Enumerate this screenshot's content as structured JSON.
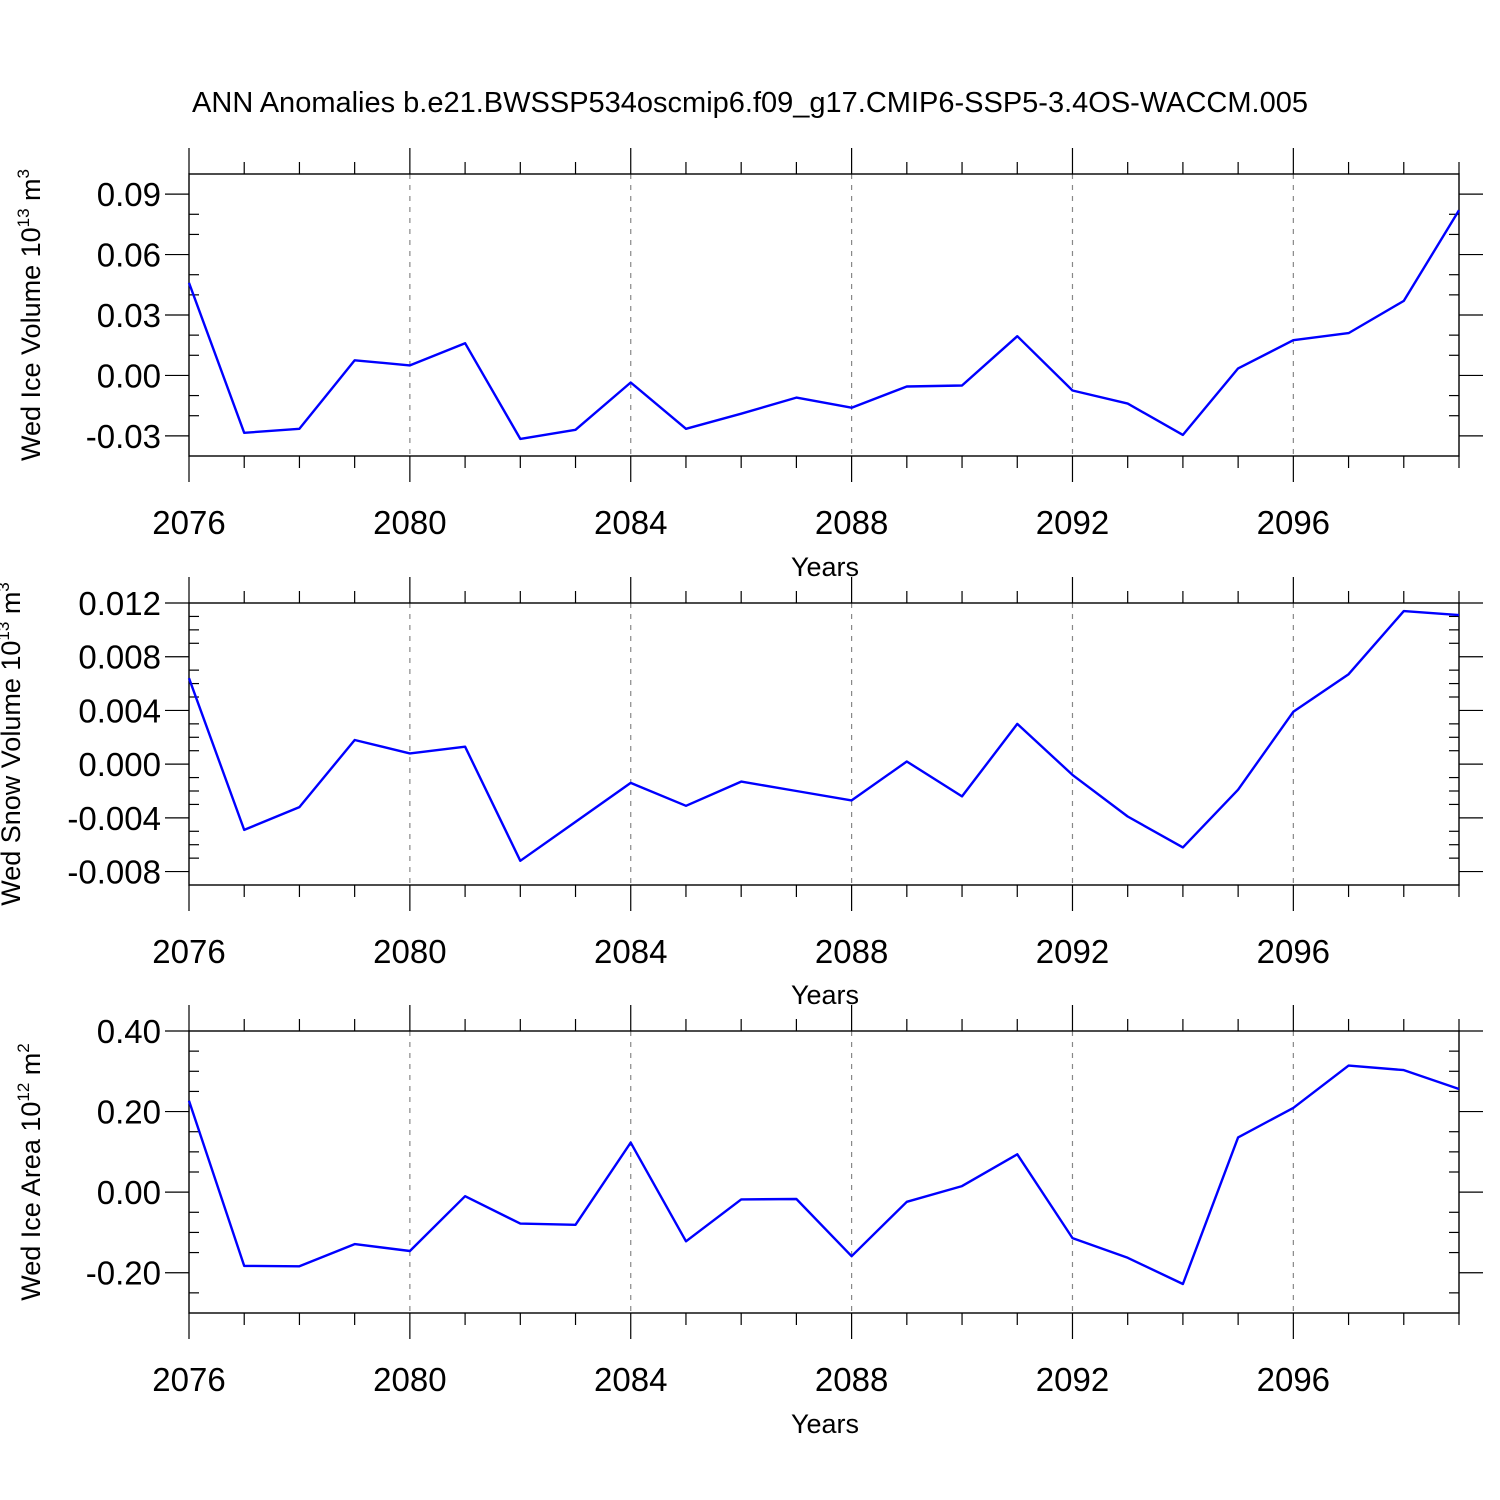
{
  "title": "ANN Anomalies b.e21.BWSSP534oscmip6.f09_g17.CMIP6-SSP5-3.4OS-WACCM.005",
  "colors": {
    "line": "#0000ff",
    "axis": "#000000",
    "grid": "#888888"
  },
  "chart_data": [
    {
      "type": "line",
      "xlabel": "Years",
      "ylabel": {
        "text": "Wed Ice Volume 10",
        "exp": "13",
        "unit": " m",
        "unit_exp": "3"
      },
      "xlim": [
        2076,
        2099
      ],
      "ylim": [
        -0.04,
        0.1
      ],
      "x_ticks": [
        2076,
        2080,
        2084,
        2088,
        2092,
        2096
      ],
      "x_tick_labels": [
        "2076",
        "2080",
        "2084",
        "2088",
        "2092",
        "2096"
      ],
      "y_ticks": [
        -0.03,
        0.0,
        0.03,
        0.06,
        0.09
      ],
      "y_tick_labels": [
        "-0.03",
        "0.00",
        "0.03",
        "0.06",
        "0.09"
      ],
      "y_minor_step": 0.01,
      "grid": "vertical dashed at major x ticks",
      "x": [
        2076,
        2077,
        2078,
        2079,
        2080,
        2081,
        2082,
        2083,
        2084,
        2085,
        2086,
        2087,
        2088,
        2089,
        2090,
        2091,
        2092,
        2093,
        2094,
        2095,
        2096,
        2097,
        2098,
        2099
      ],
      "y": [
        0.046,
        -0.0285,
        -0.0265,
        0.0075,
        0.005,
        0.016,
        -0.0315,
        -0.027,
        -0.0035,
        -0.0265,
        -0.019,
        -0.011,
        -0.016,
        -0.0055,
        -0.005,
        0.0195,
        -0.0075,
        -0.014,
        -0.0295,
        0.0035,
        0.0175,
        0.021,
        0.037,
        0.082
      ]
    },
    {
      "type": "line",
      "xlabel": "Years",
      "ylabel": {
        "text": "Wed Snow Volume 10",
        "exp": "13",
        "unit": " m",
        "unit_exp": "3"
      },
      "xlim": [
        2076,
        2099
      ],
      "ylim": [
        -0.009,
        0.012
      ],
      "x_ticks": [
        2076,
        2080,
        2084,
        2088,
        2092,
        2096
      ],
      "x_tick_labels": [
        "2076",
        "2080",
        "2084",
        "2088",
        "2092",
        "2096"
      ],
      "y_ticks": [
        -0.008,
        -0.004,
        0.0,
        0.004,
        0.008,
        0.012
      ],
      "y_tick_labels": [
        "-0.008",
        "-0.004",
        "0.000",
        "0.004",
        "0.008",
        "0.012"
      ],
      "y_minor_step": 0.001,
      "grid": "vertical dashed at major x ticks",
      "x": [
        2076,
        2077,
        2078,
        2079,
        2080,
        2081,
        2082,
        2083,
        2084,
        2085,
        2086,
        2087,
        2088,
        2089,
        2090,
        2091,
        2092,
        2093,
        2094,
        2095,
        2096,
        2097,
        2098,
        2099
      ],
      "y": [
        0.0064,
        -0.0049,
        -0.0032,
        0.0018,
        0.0008,
        0.0013,
        -0.0072,
        -0.0043,
        -0.0014,
        -0.0031,
        -0.0013,
        -0.002,
        -0.0027,
        0.0002,
        -0.0024,
        0.003,
        -0.0008,
        -0.0039,
        -0.0062,
        -0.0019,
        0.0039,
        0.0067,
        0.0114,
        0.0111
      ]
    },
    {
      "type": "line",
      "xlabel": "Years",
      "ylabel": {
        "text": "Wed Ice Area 10",
        "exp": "12",
        "unit": " m",
        "unit_exp": "2"
      },
      "xlim": [
        2076,
        2099
      ],
      "ylim": [
        -0.3,
        0.4
      ],
      "x_ticks": [
        2076,
        2080,
        2084,
        2088,
        2092,
        2096
      ],
      "x_tick_labels": [
        "2076",
        "2080",
        "2084",
        "2088",
        "2092",
        "2096"
      ],
      "y_ticks": [
        -0.2,
        0.0,
        0.2,
        0.4
      ],
      "y_tick_labels": [
        "-0.20",
        "0.00",
        "0.20",
        "0.40"
      ],
      "y_minor_step": 0.05,
      "grid": "vertical dashed at major x ticks",
      "x": [
        2076,
        2077,
        2078,
        2079,
        2080,
        2081,
        2082,
        2083,
        2084,
        2085,
        2086,
        2087,
        2088,
        2089,
        2090,
        2091,
        2092,
        2093,
        2094,
        2095,
        2096,
        2097,
        2098,
        2099
      ],
      "y": [
        0.227,
        -0.183,
        -0.184,
        -0.129,
        -0.146,
        -0.01,
        -0.078,
        -0.081,
        0.123,
        -0.122,
        -0.018,
        -0.017,
        -0.159,
        -0.024,
        0.015,
        0.094,
        -0.114,
        -0.163,
        -0.228,
        0.136,
        0.209,
        0.314,
        0.303,
        0.256
      ]
    }
  ]
}
